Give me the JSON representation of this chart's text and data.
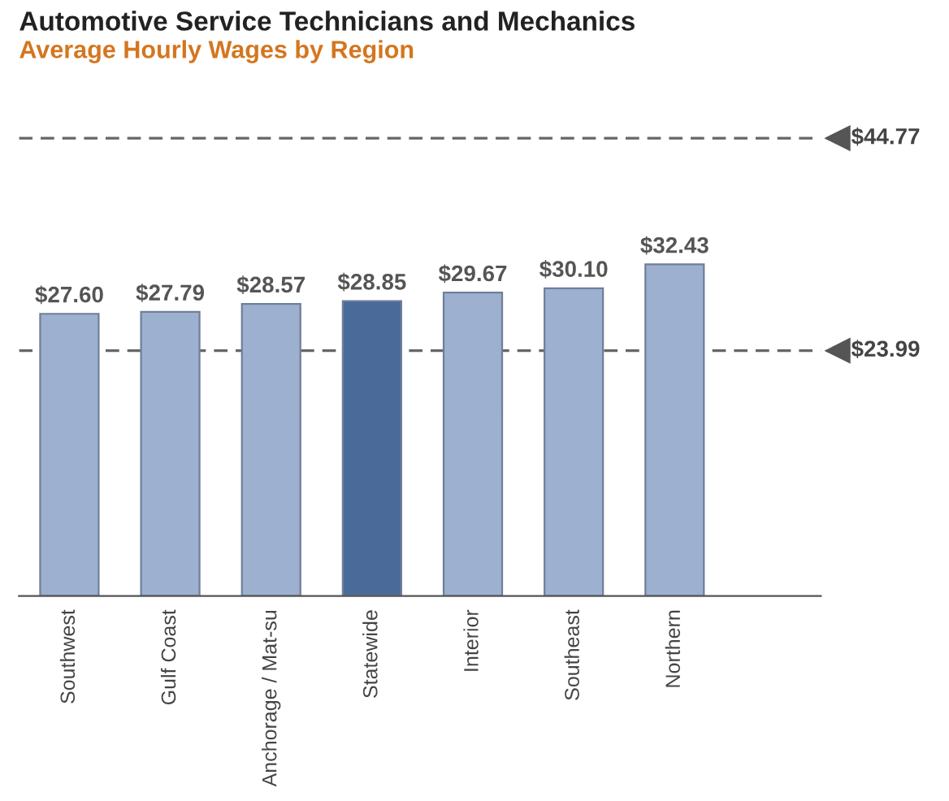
{
  "chart_data": {
    "type": "bar",
    "title": "Automotive Service Technicians and Mechanics",
    "subtitle": "Average Hourly Wages by Region",
    "categories": [
      "Southwest",
      "Gulf Coast",
      "Anchorage / Mat-su",
      "Statewide",
      "Interior",
      "Southeast",
      "Northern"
    ],
    "values": [
      27.6,
      27.79,
      28.57,
      28.85,
      29.67,
      30.1,
      32.43
    ],
    "value_labels": [
      "$27.60",
      "$27.79",
      "$28.57",
      "$28.85",
      "$29.67",
      "$30.10",
      "$32.43"
    ],
    "colors": [
      "#9db0cf",
      "#9db0cf",
      "#9db0cf",
      "#4a6a9a",
      "#9db0cf",
      "#9db0cf",
      "#9db0cf"
    ],
    "ref_lines": [
      {
        "axis": "y",
        "value": 44.77,
        "label": "$44.77",
        "color": "#666666",
        "line_style": "dashed"
      },
      {
        "axis": "y",
        "value": 23.99,
        "label": "$23.99",
        "color": "#666666",
        "line_style": "dashed"
      }
    ],
    "grid": false,
    "legend": false
  }
}
